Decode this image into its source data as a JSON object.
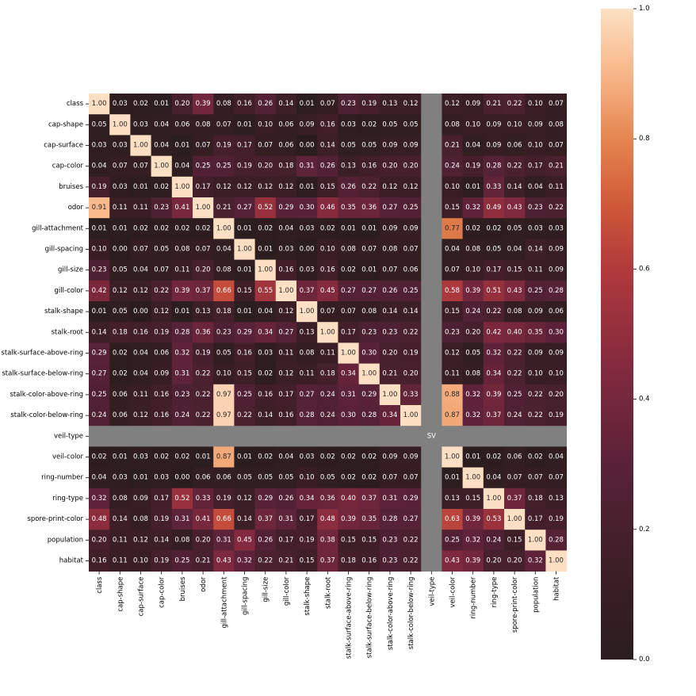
{
  "chart_data": {
    "type": "heatmap",
    "title": "",
    "xlabel": "",
    "ylabel": "",
    "variables": [
      "class",
      "cap-shape",
      "cap-surface",
      "cap-color",
      "bruises",
      "odor",
      "gill-attachment",
      "gill-spacing",
      "gill-size",
      "gill-color",
      "stalk-shape",
      "stalk-root",
      "stalk-surface-above-ring",
      "stalk-surface-below-ring",
      "stalk-color-above-ring",
      "stalk-color-below-ring",
      "veil-type",
      "veil-color",
      "ring-number",
      "ring-type",
      "spore-print-color",
      "population",
      "habitat"
    ],
    "values": [
      [
        1.0,
        0.03,
        0.02,
        0.01,
        0.2,
        0.39,
        0.08,
        0.16,
        0.26,
        0.14,
        0.01,
        0.07,
        0.23,
        0.19,
        0.13,
        0.12,
        null,
        0.12,
        0.09,
        0.21,
        0.22,
        0.1,
        0.07
      ],
      [
        0.05,
        1.0,
        0.03,
        0.04,
        0.06,
        0.08,
        0.07,
        0.01,
        0.1,
        0.06,
        0.09,
        0.16,
        0.03,
        0.02,
        0.05,
        0.05,
        null,
        0.08,
        0.1,
        0.09,
        0.1,
        0.09,
        0.08
      ],
      [
        0.03,
        0.03,
        1.0,
        0.04,
        0.01,
        0.07,
        0.19,
        0.17,
        0.07,
        0.06,
        0.0,
        0.14,
        0.05,
        0.05,
        0.09,
        0.09,
        null,
        0.21,
        0.04,
        0.09,
        0.06,
        0.1,
        0.07
      ],
      [
        0.04,
        0.07,
        0.07,
        1.0,
        0.04,
        0.25,
        0.25,
        0.19,
        0.2,
        0.18,
        0.31,
        0.26,
        0.13,
        0.16,
        0.2,
        0.2,
        null,
        0.24,
        0.19,
        0.28,
        0.22,
        0.17,
        0.21
      ],
      [
        0.19,
        0.03,
        0.01,
        0.02,
        1.0,
        0.17,
        0.12,
        0.12,
        0.12,
        0.12,
        0.01,
        0.15,
        0.26,
        0.22,
        0.12,
        0.12,
        null,
        0.1,
        0.01,
        0.33,
        0.14,
        0.04,
        0.11
      ],
      [
        0.91,
        0.11,
        0.11,
        0.23,
        0.41,
        1.0,
        0.21,
        0.27,
        0.52,
        0.29,
        0.3,
        0.46,
        0.35,
        0.36,
        0.27,
        0.25,
        null,
        0.15,
        0.32,
        0.49,
        0.43,
        0.23,
        0.22
      ],
      [
        0.01,
        0.01,
        0.02,
        0.02,
        0.02,
        0.02,
        1.0,
        0.01,
        0.02,
        0.04,
        0.03,
        0.02,
        0.01,
        0.01,
        0.09,
        0.09,
        null,
        0.77,
        0.02,
        0.02,
        0.05,
        0.03,
        0.03
      ],
      [
        0.1,
        0.0,
        0.07,
        0.05,
        0.08,
        0.07,
        0.04,
        1.0,
        0.01,
        0.03,
        0.0,
        0.1,
        0.08,
        0.07,
        0.08,
        0.07,
        null,
        0.04,
        0.08,
        0.05,
        0.04,
        0.14,
        0.09
      ],
      [
        0.23,
        0.05,
        0.04,
        0.07,
        0.11,
        0.2,
        0.08,
        0.01,
        1.0,
        0.16,
        0.03,
        0.16,
        0.02,
        0.01,
        0.07,
        0.06,
        null,
        0.07,
        0.1,
        0.17,
        0.15,
        0.11,
        0.09
      ],
      [
        0.42,
        0.12,
        0.12,
        0.22,
        0.39,
        0.37,
        0.66,
        0.15,
        0.55,
        1.0,
        0.37,
        0.45,
        0.27,
        0.27,
        0.26,
        0.25,
        null,
        0.58,
        0.39,
        0.51,
        0.43,
        0.25,
        0.28
      ],
      [
        0.01,
        0.05,
        0.0,
        0.12,
        0.01,
        0.13,
        0.18,
        0.01,
        0.04,
        0.12,
        1.0,
        0.07,
        0.07,
        0.08,
        0.14,
        0.14,
        null,
        0.15,
        0.24,
        0.22,
        0.08,
        0.09,
        0.06
      ],
      [
        0.14,
        0.18,
        0.16,
        0.19,
        0.28,
        0.36,
        0.23,
        0.29,
        0.34,
        0.27,
        0.13,
        1.0,
        0.17,
        0.23,
        0.23,
        0.22,
        null,
        0.23,
        0.2,
        0.42,
        0.4,
        0.35,
        0.3
      ],
      [
        0.29,
        0.02,
        0.04,
        0.06,
        0.32,
        0.19,
        0.05,
        0.16,
        0.03,
        0.11,
        0.08,
        0.11,
        1.0,
        0.3,
        0.2,
        0.19,
        null,
        0.12,
        0.05,
        0.32,
        0.22,
        0.09,
        0.09
      ],
      [
        0.27,
        0.02,
        0.04,
        0.09,
        0.31,
        0.22,
        0.1,
        0.15,
        0.02,
        0.12,
        0.11,
        0.18,
        0.34,
        1.0,
        0.21,
        0.2,
        null,
        0.11,
        0.08,
        0.34,
        0.22,
        0.1,
        0.1
      ],
      [
        0.25,
        0.06,
        0.11,
        0.16,
        0.23,
        0.22,
        0.97,
        0.25,
        0.16,
        0.17,
        0.27,
        0.24,
        0.31,
        0.29,
        1.0,
        0.33,
        null,
        0.88,
        0.32,
        0.39,
        0.25,
        0.22,
        0.2
      ],
      [
        0.24,
        0.06,
        0.12,
        0.16,
        0.24,
        0.22,
        0.97,
        0.22,
        0.14,
        0.16,
        0.28,
        0.24,
        0.3,
        0.28,
        0.34,
        1.0,
        null,
        0.87,
        0.32,
        0.37,
        0.24,
        0.22,
        0.19
      ],
      [
        null,
        null,
        null,
        null,
        null,
        null,
        null,
        null,
        null,
        null,
        null,
        null,
        null,
        null,
        null,
        null,
        "SV",
        null,
        null,
        null,
        null,
        null,
        null
      ],
      [
        0.02,
        0.01,
        0.03,
        0.02,
        0.02,
        0.01,
        0.87,
        0.01,
        0.02,
        0.04,
        0.03,
        0.02,
        0.02,
        0.02,
        0.09,
        0.09,
        null,
        1.0,
        0.01,
        0.02,
        0.06,
        0.02,
        0.04
      ],
      [
        0.04,
        0.03,
        0.01,
        0.03,
        0.0,
        0.06,
        0.06,
        0.05,
        0.05,
        0.05,
        0.1,
        0.05,
        0.02,
        0.02,
        0.07,
        0.07,
        null,
        0.01,
        1.0,
        0.04,
        0.07,
        0.07,
        0.07
      ],
      [
        0.32,
        0.08,
        0.09,
        0.17,
        0.52,
        0.33,
        0.19,
        0.12,
        0.29,
        0.26,
        0.34,
        0.36,
        0.4,
        0.37,
        0.31,
        0.29,
        null,
        0.13,
        0.15,
        1.0,
        0.37,
        0.18,
        0.13
      ],
      [
        0.48,
        0.14,
        0.08,
        0.19,
        0.31,
        0.41,
        0.66,
        0.14,
        0.37,
        0.31,
        0.17,
        0.48,
        0.39,
        0.35,
        0.28,
        0.27,
        null,
        0.63,
        0.39,
        0.53,
        1.0,
        0.17,
        0.19
      ],
      [
        0.2,
        0.11,
        0.12,
        0.14,
        0.08,
        0.2,
        0.31,
        0.45,
        0.26,
        0.17,
        0.19,
        0.38,
        0.15,
        0.15,
        0.23,
        0.22,
        null,
        0.25,
        0.32,
        0.24,
        0.15,
        1.0,
        0.28
      ],
      [
        0.16,
        0.11,
        0.1,
        0.19,
        0.25,
        0.21,
        0.43,
        0.32,
        0.22,
        0.21,
        0.15,
        0.37,
        0.18,
        0.16,
        0.23,
        0.22,
        null,
        0.43,
        0.39,
        0.2,
        0.2,
        0.32,
        1.0
      ]
    ],
    "missing_color": "#808080",
    "colormap": "dark-to-orange-to-peach",
    "vmin": 0.0,
    "vmax": 1.0,
    "colorbar_ticks": [
      "0.0",
      "0.2",
      "0.4",
      "0.6",
      "0.8",
      "1.0"
    ],
    "grid": false,
    "legend": "colorbar-right"
  }
}
